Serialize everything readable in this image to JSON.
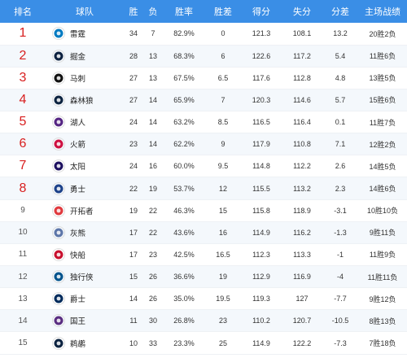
{
  "header": {
    "rank": "排名",
    "team": "球队",
    "win": "胜",
    "loss": "负",
    "pct": "胜率",
    "gb": "胜差",
    "pts": "得分",
    "opp": "失分",
    "diff": "分差",
    "home": "主场战绩"
  },
  "rows": [
    {
      "rank": "1",
      "team": "雷霆",
      "w": "34",
      "l": "7",
      "pct": "82.9%",
      "gb": "0",
      "pts": "121.3",
      "opp": "108.1",
      "diff": "13.2",
      "home": "20胜2负",
      "logo_color": "#007ac1",
      "logo_icon": "thunder-logo-icon"
    },
    {
      "rank": "2",
      "team": "掘金",
      "w": "28",
      "l": "13",
      "pct": "68.3%",
      "gb": "6",
      "pts": "122.6",
      "opp": "117.2",
      "diff": "5.4",
      "home": "11胜6负",
      "logo_color": "#0e2240",
      "logo_icon": "nuggets-logo-icon"
    },
    {
      "rank": "3",
      "team": "马刺",
      "w": "27",
      "l": "13",
      "pct": "67.5%",
      "gb": "6.5",
      "pts": "117.6",
      "opp": "112.8",
      "diff": "4.8",
      "home": "13胜5负",
      "logo_color": "#111111",
      "logo_icon": "spurs-logo-icon"
    },
    {
      "rank": "4",
      "team": "森林狼",
      "w": "27",
      "l": "14",
      "pct": "65.9%",
      "gb": "7",
      "pts": "120.3",
      "opp": "114.6",
      "diff": "5.7",
      "home": "15胜6负",
      "logo_color": "#0c2340",
      "logo_icon": "timberwolves-logo-icon"
    },
    {
      "rank": "5",
      "team": "湖人",
      "w": "24",
      "l": "14",
      "pct": "63.2%",
      "gb": "8.5",
      "pts": "116.5",
      "opp": "116.4",
      "diff": "0.1",
      "home": "11胜7负",
      "logo_color": "#552583",
      "logo_icon": "lakers-logo-icon"
    },
    {
      "rank": "6",
      "team": "火箭",
      "w": "23",
      "l": "14",
      "pct": "62.2%",
      "gb": "9",
      "pts": "117.9",
      "opp": "110.8",
      "diff": "7.1",
      "home": "12胜2负",
      "logo_color": "#ce1141",
      "logo_icon": "rockets-logo-icon"
    },
    {
      "rank": "7",
      "team": "太阳",
      "w": "24",
      "l": "16",
      "pct": "60.0%",
      "gb": "9.5",
      "pts": "114.8",
      "opp": "112.2",
      "diff": "2.6",
      "home": "14胜5负",
      "logo_color": "#1d1160",
      "logo_icon": "suns-logo-icon"
    },
    {
      "rank": "8",
      "team": "勇士",
      "w": "22",
      "l": "19",
      "pct": "53.7%",
      "gb": "12",
      "pts": "115.5",
      "opp": "113.2",
      "diff": "2.3",
      "home": "14胜6负",
      "logo_color": "#1d428a",
      "logo_icon": "warriors-logo-icon"
    },
    {
      "rank": "9",
      "team": "开拓者",
      "w": "19",
      "l": "22",
      "pct": "46.3%",
      "gb": "15",
      "pts": "115.8",
      "opp": "118.9",
      "diff": "-3.1",
      "home": "10胜10负",
      "logo_color": "#e03a3e",
      "logo_icon": "blazers-logo-icon"
    },
    {
      "rank": "10",
      "team": "灰熊",
      "w": "17",
      "l": "22",
      "pct": "43.6%",
      "gb": "16",
      "pts": "114.9",
      "opp": "116.2",
      "diff": "-1.3",
      "home": "9胜11负",
      "logo_color": "#5d76a9",
      "logo_icon": "grizzlies-logo-icon"
    },
    {
      "rank": "11",
      "team": "快船",
      "w": "17",
      "l": "23",
      "pct": "42.5%",
      "gb": "16.5",
      "pts": "112.3",
      "opp": "113.3",
      "diff": "-1",
      "home": "11胜9负",
      "logo_color": "#c8102e",
      "logo_icon": "clippers-logo-icon"
    },
    {
      "rank": "12",
      "team": "独行侠",
      "w": "15",
      "l": "26",
      "pct": "36.6%",
      "gb": "19",
      "pts": "112.9",
      "opp": "116.9",
      "diff": "-4",
      "home": "11胜11负",
      "logo_color": "#00538c",
      "logo_icon": "mavericks-logo-icon"
    },
    {
      "rank": "13",
      "team": "爵士",
      "w": "14",
      "l": "26",
      "pct": "35.0%",
      "gb": "19.5",
      "pts": "119.3",
      "opp": "127",
      "diff": "-7.7",
      "home": "9胜12负",
      "logo_color": "#002b5c",
      "logo_icon": "jazz-logo-icon"
    },
    {
      "rank": "14",
      "team": "国王",
      "w": "11",
      "l": "30",
      "pct": "26.8%",
      "gb": "23",
      "pts": "110.2",
      "opp": "120.7",
      "diff": "-10.5",
      "home": "8胜13负",
      "logo_color": "#5a2d81",
      "logo_icon": "kings-logo-icon"
    },
    {
      "rank": "15",
      "team": "鹈鹕",
      "w": "10",
      "l": "33",
      "pct": "23.3%",
      "gb": "25",
      "pts": "114.9",
      "opp": "122.2",
      "diff": "-7.3",
      "home": "7胜18负",
      "logo_color": "#0c2340",
      "logo_icon": "pelicans-logo-icon"
    }
  ],
  "colors": {
    "header_bg": "#3a8ee6",
    "top_rank": "#d81e1e"
  }
}
